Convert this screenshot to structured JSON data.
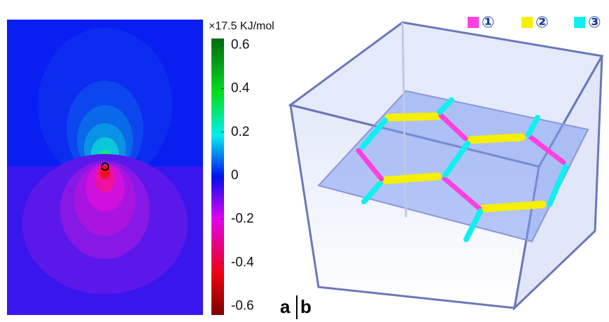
{
  "panel_a": {
    "label": "a",
    "colorbar": {
      "title": "×17.5 KJ/mol",
      "lim": [
        -0.64,
        0.63
      ],
      "ticks": [
        0.6,
        0.4,
        0.2,
        0,
        -0.2,
        -0.4,
        -0.6
      ]
    }
  },
  "panel_b": {
    "label": "b",
    "legend": [
      {
        "label": "①",
        "color": "#ff40e0"
      },
      {
        "label": "②",
        "color": "#f5f000"
      },
      {
        "label": "③",
        "color": "#10f0f0"
      }
    ]
  }
}
